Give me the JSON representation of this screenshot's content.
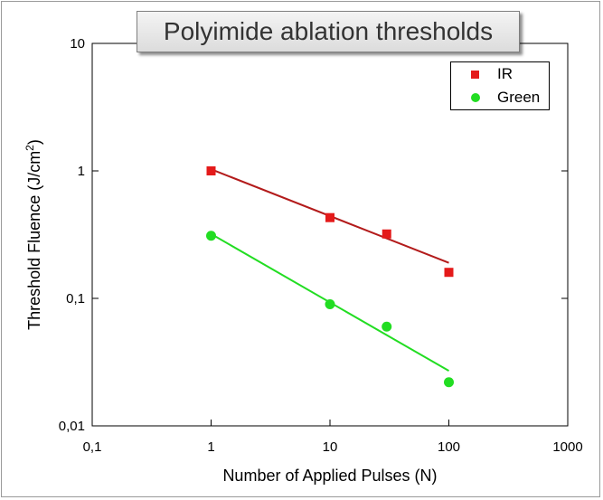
{
  "chart_data": {
    "type": "scatter",
    "title": "Polyimide ablation thresholds",
    "xlabel": "Number of Applied Pulses (N)",
    "ylabel_main": "Threshold Fluence (J/cm",
    "ylabel_sup": "2",
    "ylabel_close": ")",
    "xscale": "log",
    "yscale": "log",
    "xlim": [
      0.1,
      1000
    ],
    "ylim": [
      0.01,
      10
    ],
    "x_ticks": [
      {
        "value": 0.1,
        "label": "0,1"
      },
      {
        "value": 1,
        "label": "1"
      },
      {
        "value": 10,
        "label": "10"
      },
      {
        "value": 100,
        "label": "100"
      },
      {
        "value": 1000,
        "label": "1000"
      }
    ],
    "y_ticks": [
      {
        "value": 0.01,
        "label": "0,01"
      },
      {
        "value": 0.1,
        "label": "0,1"
      },
      {
        "value": 1,
        "label": "1"
      },
      {
        "value": 10,
        "label": "10"
      }
    ],
    "legend_position": "top-right",
    "grid": false,
    "series": [
      {
        "name": "IR",
        "color": "#e41a1a",
        "line_color": "#b31b1b",
        "marker": "square",
        "x": [
          1,
          10,
          30,
          100
        ],
        "y": [
          1.0,
          0.43,
          0.32,
          0.16
        ],
        "fit": {
          "x": [
            1,
            100
          ],
          "y": [
            1.03,
            0.19
          ]
        }
      },
      {
        "name": "Green",
        "color": "#22dd22",
        "line_color": "#22dd22",
        "marker": "circle",
        "x": [
          1,
          10,
          30,
          100
        ],
        "y": [
          0.31,
          0.09,
          0.06,
          0.022
        ],
        "fit": {
          "x": [
            1,
            100
          ],
          "y": [
            0.32,
            0.027
          ]
        }
      }
    ]
  }
}
